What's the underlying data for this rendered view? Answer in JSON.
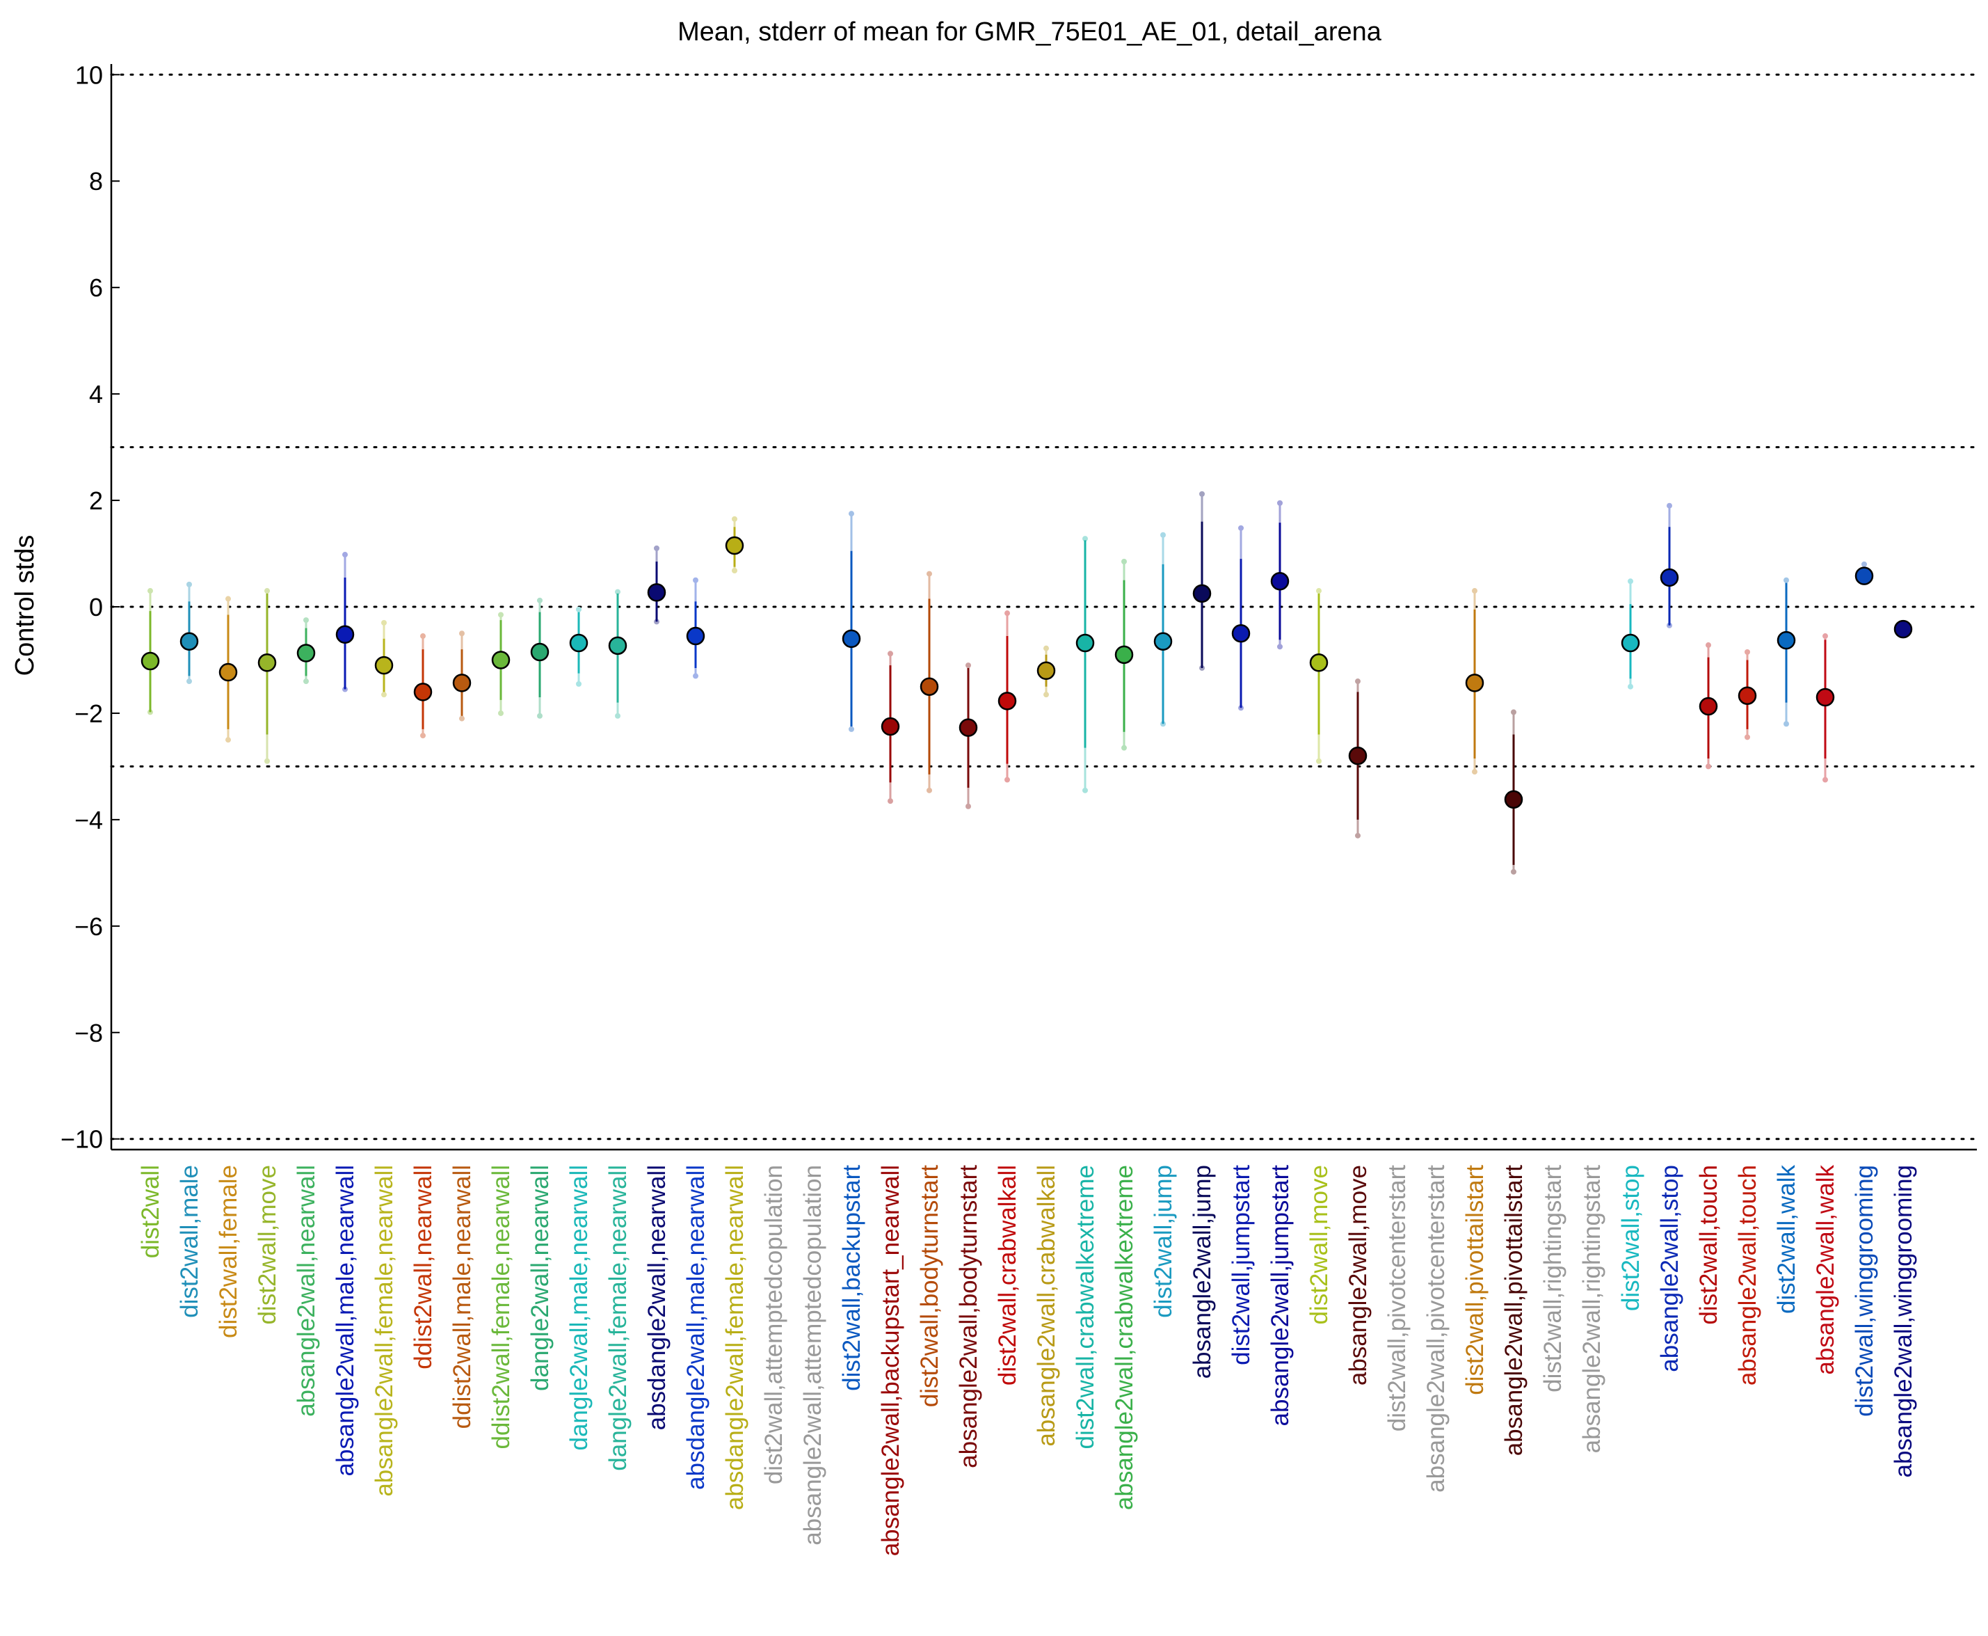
{
  "chart_data": {
    "type": "scatter",
    "title": "Mean, stderr of mean for GMR_75E01_AE_01, detail_arena",
    "xlabel": "",
    "ylabel": "Control stds",
    "ylim": [
      -10.2,
      10.2
    ],
    "yticks": [
      -10,
      -8,
      -6,
      -4,
      -2,
      0,
      2,
      4,
      6,
      8,
      10
    ],
    "ytick_labels": [
      "−10",
      "−8",
      "−6",
      "−4",
      "−2",
      "0",
      "2",
      "4",
      "6",
      "8",
      "10"
    ],
    "reference_lines": [
      10,
      3,
      0,
      -3,
      -10
    ],
    "grid": false,
    "legend": "none",
    "points": [
      {
        "label": "dist2wall",
        "color": "#7cb82a",
        "mean": -1.02,
        "se_low": -1.98,
        "se_high": -0.08,
        "ext_low": -1.98,
        "ext_high": 0.3
      },
      {
        "label": "dist2wall,male",
        "color": "#1f8fb8",
        "mean": -0.65,
        "se_low": -1.3,
        "se_high": 0.1,
        "ext_low": -1.4,
        "ext_high": 0.42
      },
      {
        "label": "dist2wall,female",
        "color": "#c88a16",
        "mean": -1.23,
        "se_low": -2.3,
        "se_high": -0.15,
        "ext_low": -2.5,
        "ext_high": 0.15
      },
      {
        "label": "dist2wall,move",
        "color": "#96b52a",
        "mean": -1.05,
        "se_low": -2.4,
        "se_high": 0.25,
        "ext_low": -2.9,
        "ext_high": 0.3
      },
      {
        "label": "absangle2wall,nearwall",
        "color": "#3cb15e",
        "mean": -0.87,
        "se_low": -1.3,
        "se_high": -0.4,
        "ext_low": -1.4,
        "ext_high": -0.25
      },
      {
        "label": "absangle2wall,male,nearwall",
        "color": "#0a1ab4",
        "mean": -0.52,
        "se_low": -1.55,
        "se_high": 0.55,
        "ext_low": -1.55,
        "ext_high": 0.98
      },
      {
        "label": "absangle2wall,female,nearwall",
        "color": "#b8b41c",
        "mean": -1.1,
        "se_low": -1.6,
        "se_high": -0.6,
        "ext_low": -1.65,
        "ext_high": -0.3
      },
      {
        "label": "ddist2wall,nearwall",
        "color": "#c43606",
        "mean": -1.6,
        "se_low": -2.3,
        "se_high": -0.8,
        "ext_low": -2.42,
        "ext_high": -0.55
      },
      {
        "label": "ddist2wall,male,nearwall",
        "color": "#b85a10",
        "mean": -1.43,
        "se_low": -2.05,
        "se_high": -0.8,
        "ext_low": -2.1,
        "ext_high": -0.5
      },
      {
        "label": "ddist2wall,female,nearwall",
        "color": "#6ab83a",
        "mean": -1.0,
        "se_low": -1.75,
        "se_high": -0.25,
        "ext_low": -2.0,
        "ext_high": -0.15
      },
      {
        "label": "dangle2wall,nearwall",
        "color": "#2aa870",
        "mean": -0.85,
        "se_low": -1.7,
        "se_high": -0.1,
        "ext_low": -2.05,
        "ext_high": 0.12
      },
      {
        "label": "dangle2wall,male,nearwall",
        "color": "#1ab8b8",
        "mean": -0.68,
        "se_low": -1.25,
        "se_high": -0.1,
        "ext_low": -1.45,
        "ext_high": -0.05
      },
      {
        "label": "dangle2wall,female,nearwall",
        "color": "#28b49a",
        "mean": -0.73,
        "se_low": -1.8,
        "se_high": 0.25,
        "ext_low": -2.05,
        "ext_high": 0.28
      },
      {
        "label": "absdangle2wall,nearwall",
        "color": "#0a0a72",
        "mean": 0.27,
        "se_low": -0.28,
        "se_high": 0.85,
        "ext_low": -0.28,
        "ext_high": 1.1
      },
      {
        "label": "absdangle2wall,male,nearwall",
        "color": "#0a38c8",
        "mean": -0.55,
        "se_low": -1.15,
        "se_high": 0.1,
        "ext_low": -1.3,
        "ext_high": 0.5
      },
      {
        "label": "absdangle2wall,female,nearwall",
        "color": "#b8ae16",
        "mean": 1.15,
        "se_low": 0.75,
        "se_high": 1.5,
        "ext_low": 0.68,
        "ext_high": 1.65
      },
      {
        "label": "dist2wall,attemptedcopulation",
        "color": "#999999",
        "mean": null
      },
      {
        "label": "absangle2wall,attemptedcopulation",
        "color": "#999999",
        "mean": null
      },
      {
        "label": "dist2wall,backupstart",
        "color": "#0a58c0",
        "mean": -0.6,
        "se_low": -2.25,
        "se_high": 1.05,
        "ext_low": -2.3,
        "ext_high": 1.75
      },
      {
        "label": "absangle2wall,backupstart_nearwall",
        "color": "#9a0606",
        "mean": -2.25,
        "se_low": -3.3,
        "se_high": -1.1,
        "ext_low": -3.65,
        "ext_high": -0.88
      },
      {
        "label": "dist2wall,bodyturnstart",
        "color": "#b44a08",
        "mean": -1.5,
        "se_low": -3.15,
        "se_high": 0.15,
        "ext_low": -3.45,
        "ext_high": 0.62
      },
      {
        "label": "absangle2wall,bodyturnstart",
        "color": "#7a0a0a",
        "mean": -2.27,
        "se_low": -3.4,
        "se_high": -1.15,
        "ext_low": -3.75,
        "ext_high": -1.1
      },
      {
        "label": "dist2wall,crabwalkall",
        "color": "#c00a0a",
        "mean": -1.77,
        "se_low": -2.95,
        "se_high": -0.55,
        "ext_low": -3.25,
        "ext_high": -0.12
      },
      {
        "label": "absangle2wall,crabwalkall",
        "color": "#b89a16",
        "mean": -1.2,
        "se_low": -1.5,
        "se_high": -0.9,
        "ext_low": -1.65,
        "ext_high": -0.78
      },
      {
        "label": "dist2wall,crabwalkextreme",
        "color": "#18b4a6",
        "mean": -0.68,
        "se_low": -2.65,
        "se_high": 1.25,
        "ext_low": -3.45,
        "ext_high": 1.28
      },
      {
        "label": "absangle2wall,crabwalkextreme",
        "color": "#3ab04a",
        "mean": -0.9,
        "se_low": -2.35,
        "se_high": 0.5,
        "ext_low": -2.65,
        "ext_high": 0.85
      },
      {
        "label": "dist2wall,jump",
        "color": "#1a9ac0",
        "mean": -0.65,
        "se_low": -2.2,
        "se_high": 0.8,
        "ext_low": -2.2,
        "ext_high": 1.35
      },
      {
        "label": "absangle2wall,jump",
        "color": "#0a0a5a",
        "mean": 0.25,
        "se_low": -1.15,
        "se_high": 1.6,
        "ext_low": -1.15,
        "ext_high": 2.12
      },
      {
        "label": "dist2wall,jumpstart",
        "color": "#0a1ab0",
        "mean": -0.5,
        "se_low": -1.9,
        "se_high": 0.9,
        "ext_low": -1.9,
        "ext_high": 1.48
      },
      {
        "label": "absangle2wall,jumpstart",
        "color": "#0a0a9a",
        "mean": 0.48,
        "se_low": -0.62,
        "se_high": 1.58,
        "ext_low": -0.75,
        "ext_high": 1.95
      },
      {
        "label": "dist2wall,move",
        "color": "#a8c01a",
        "mean": -1.05,
        "se_low": -2.4,
        "se_high": 0.25,
        "ext_low": -2.9,
        "ext_high": 0.3
      },
      {
        "label": "absangle2wall,move",
        "color": "#5a0a0a",
        "mean": -2.8,
        "se_low": -4.0,
        "se_high": -1.6,
        "ext_low": -4.3,
        "ext_high": -1.4
      },
      {
        "label": "dist2wall,pivotcenterstart",
        "color": "#999999",
        "mean": null
      },
      {
        "label": "absangle2wall,pivotcenterstart",
        "color": "#999999",
        "mean": null
      },
      {
        "label": "dist2wall,pivottailstart",
        "color": "#c07a10",
        "mean": -1.43,
        "se_low": -2.85,
        "se_high": -0.05,
        "ext_low": -3.1,
        "ext_high": 0.3
      },
      {
        "label": "absangle2wall,pivottailstart",
        "color": "#4a0606",
        "mean": -3.62,
        "se_low": -4.85,
        "se_high": -2.4,
        "ext_low": -4.98,
        "ext_high": -1.98
      },
      {
        "label": "dist2wall,rightingstart",
        "color": "#999999",
        "mean": null
      },
      {
        "label": "absangle2wall,rightingstart",
        "color": "#999999",
        "mean": null
      },
      {
        "label": "dist2wall,stop",
        "color": "#18b8c0",
        "mean": -0.68,
        "se_low": -1.35,
        "se_high": 0.05,
        "ext_low": -1.5,
        "ext_high": 0.48
      },
      {
        "label": "absangle2wall,stop",
        "color": "#0a28b4",
        "mean": 0.55,
        "se_low": -0.35,
        "se_high": 1.5,
        "ext_low": -0.35,
        "ext_high": 1.9
      },
      {
        "label": "dist2wall,touch",
        "color": "#b40a0a",
        "mean": -1.87,
        "se_low": -2.85,
        "se_high": -0.95,
        "ext_low": -3.0,
        "ext_high": -0.72
      },
      {
        "label": "absangle2wall,touch",
        "color": "#c01a0a",
        "mean": -1.67,
        "se_low": -2.3,
        "se_high": -1.0,
        "ext_low": -2.45,
        "ext_high": -0.85
      },
      {
        "label": "dist2wall,walk",
        "color": "#0a6ac0",
        "mean": -0.63,
        "se_low": -1.8,
        "se_high": 0.45,
        "ext_low": -2.2,
        "ext_high": 0.5
      },
      {
        "label": "absangle2wall,walk",
        "color": "#c00a14",
        "mean": -1.7,
        "se_low": -2.85,
        "se_high": -0.62,
        "ext_low": -3.25,
        "ext_high": -0.55
      },
      {
        "label": "dist2wall,winggrooming",
        "color": "#0a4ab8",
        "mean": 0.58,
        "se_low": 0.52,
        "se_high": 0.65,
        "ext_low": 0.5,
        "ext_high": 0.8
      },
      {
        "label": "absangle2wall,winggrooming",
        "color": "#0a0a80",
        "mean": -0.42,
        "se_low": -0.5,
        "se_high": -0.35,
        "ext_low": -0.52,
        "ext_high": -0.3
      }
    ]
  }
}
